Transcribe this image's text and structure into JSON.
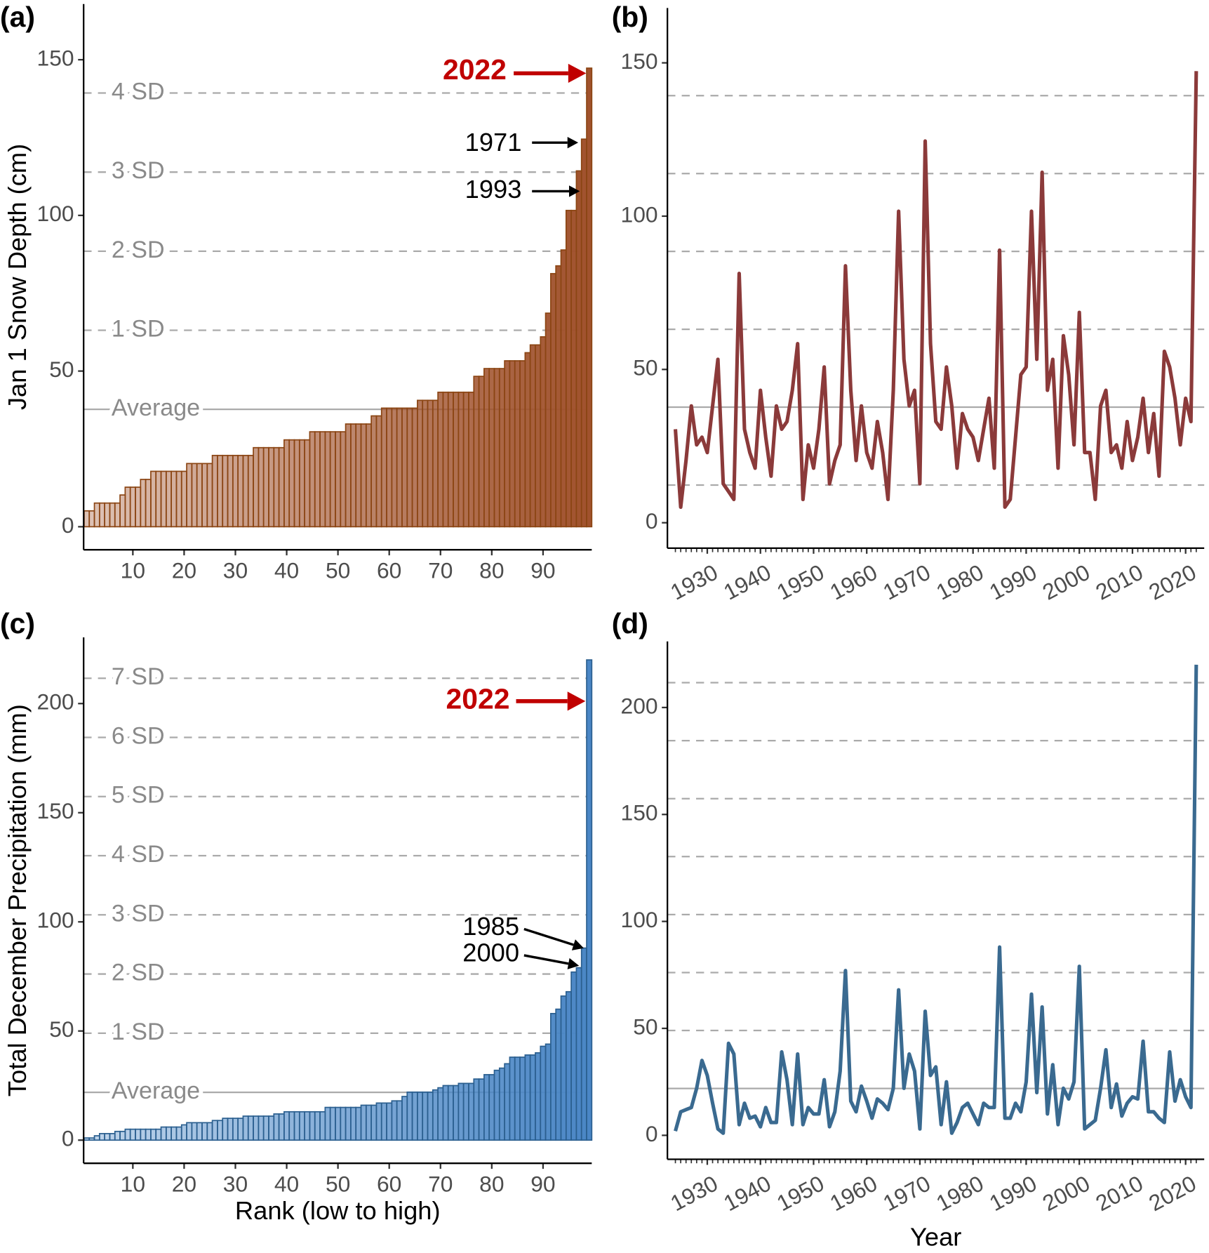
{
  "chart_data": [
    {
      "type": "bar",
      "panel_label": "(a)",
      "ylabel": "Jan 1 Snow Depth (cm)",
      "color": "#a0522d",
      "edge_color": "#8b4513",
      "x": [
        1,
        2,
        3,
        4,
        5,
        6,
        7,
        8,
        9,
        10,
        11,
        12,
        13,
        14,
        15,
        16,
        17,
        18,
        19,
        20,
        21,
        22,
        23,
        24,
        25,
        26,
        27,
        28,
        29,
        30,
        31,
        32,
        33,
        34,
        35,
        36,
        37,
        38,
        39,
        40,
        41,
        42,
        43,
        44,
        45,
        46,
        47,
        48,
        49,
        50,
        51,
        52,
        53,
        54,
        55,
        56,
        57,
        58,
        59,
        60,
        61,
        62,
        63,
        64,
        65,
        66,
        67,
        68,
        69,
        70,
        71,
        72,
        73,
        74,
        75,
        76,
        77,
        78,
        79,
        80,
        81,
        82,
        83,
        84,
        85,
        86,
        87,
        88,
        89,
        90,
        91,
        92,
        93,
        94,
        95,
        96,
        97,
        98,
        99
      ],
      "values": [
        5.1,
        5.1,
        7.6,
        7.6,
        7.6,
        7.6,
        7.6,
        10.2,
        12.7,
        12.7,
        12.7,
        15.2,
        15.2,
        17.8,
        17.8,
        17.8,
        17.8,
        17.8,
        17.8,
        17.8,
        20.3,
        20.3,
        20.3,
        20.3,
        20.3,
        22.9,
        22.9,
        22.9,
        22.9,
        22.9,
        22.9,
        22.9,
        22.9,
        25.4,
        25.4,
        25.4,
        25.4,
        25.4,
        25.4,
        27.9,
        27.9,
        27.9,
        27.9,
        27.9,
        30.5,
        30.5,
        30.5,
        30.5,
        30.5,
        30.5,
        30.5,
        33,
        33,
        33,
        33,
        33,
        35.6,
        35.6,
        38.1,
        38.1,
        38.1,
        38.1,
        38.1,
        38.1,
        38.1,
        40.6,
        40.6,
        40.6,
        40.6,
        43.2,
        43.2,
        43.2,
        43.2,
        43.2,
        43.2,
        43.2,
        48.3,
        48.3,
        50.8,
        50.8,
        50.8,
        50.8,
        53.3,
        53.3,
        53.3,
        53.3,
        55.9,
        58.4,
        58.4,
        61,
        68.6,
        81.3,
        83.8,
        88.9,
        101.6,
        101.6,
        114.3,
        124.5,
        147.3
      ],
      "xlim": [
        0.4,
        99.5
      ],
      "xticks": [
        10,
        20,
        30,
        40,
        50,
        60,
        70,
        80,
        90
      ],
      "ylim": [
        -7.4,
        167.9
      ],
      "yticks": [
        0,
        50,
        100,
        150
      ],
      "reference_lines": [
        {
          "value": 37.7,
          "label": "Average",
          "style": "solid"
        },
        {
          "value": 63.1,
          "label": "1 SD",
          "style": "dashed"
        },
        {
          "value": 88.5,
          "label": "2 SD",
          "style": "dashed"
        },
        {
          "value": 113.9,
          "label": "3 SD",
          "style": "dashed"
        },
        {
          "value": 139.3,
          "label": "4 SD",
          "style": "dashed"
        }
      ],
      "annotations": [
        {
          "text": "2022",
          "color": "#c00000",
          "bold": true
        },
        {
          "text": "1971",
          "color": "#000000",
          "bold": false
        },
        {
          "text": "1993",
          "color": "#000000",
          "bold": false
        }
      ]
    },
    {
      "type": "line",
      "panel_label": "(b)",
      "color": "#8b3a3a",
      "x": [
        1924,
        1925,
        1926,
        1927,
        1928,
        1929,
        1930,
        1931,
        1932,
        1933,
        1934,
        1935,
        1936,
        1937,
        1938,
        1939,
        1940,
        1941,
        1942,
        1943,
        1944,
        1945,
        1946,
        1947,
        1948,
        1949,
        1950,
        1951,
        1952,
        1953,
        1954,
        1955,
        1956,
        1957,
        1958,
        1959,
        1960,
        1961,
        1962,
        1963,
        1964,
        1965,
        1966,
        1967,
        1968,
        1969,
        1970,
        1971,
        1972,
        1973,
        1974,
        1975,
        1976,
        1977,
        1978,
        1979,
        1980,
        1981,
        1982,
        1983,
        1984,
        1985,
        1986,
        1987,
        1988,
        1989,
        1990,
        1991,
        1992,
        1993,
        1994,
        1995,
        1996,
        1997,
        1998,
        1999,
        2000,
        2001,
        2002,
        2003,
        2004,
        2005,
        2006,
        2007,
        2008,
        2009,
        2010,
        2011,
        2012,
        2013,
        2014,
        2015,
        2016,
        2017,
        2018,
        2019,
        2020,
        2021,
        2022
      ],
      "values": [
        30.5,
        5.1,
        20.3,
        38.1,
        25.4,
        27.9,
        22.9,
        38.1,
        53.3,
        12.7,
        10.2,
        7.6,
        81.3,
        30.5,
        22.9,
        17.8,
        43.2,
        27.9,
        15.2,
        38.1,
        30.5,
        33,
        43.2,
        58.4,
        7.6,
        25.4,
        17.8,
        30.5,
        50.8,
        12.7,
        20.3,
        25.4,
        83.8,
        43.2,
        20.3,
        38.1,
        22.9,
        17.8,
        33,
        22.9,
        7.6,
        43.2,
        101.6,
        53.3,
        38.1,
        43.2,
        12.7,
        124.5,
        58.4,
        33,
        30.5,
        50.8,
        38.1,
        17.8,
        35.6,
        30.5,
        27.9,
        20.3,
        30.5,
        40.6,
        17.8,
        88.9,
        5.1,
        7.6,
        27.9,
        48.3,
        50.8,
        101.6,
        53.3,
        114.3,
        43.2,
        53.3,
        17.8,
        61,
        48.3,
        25.4,
        68.6,
        22.9,
        22.9,
        7.6,
        38.1,
        43.2,
        22.9,
        25.4,
        17.8,
        33,
        20.3,
        27.9,
        40.6,
        22.9,
        35.6,
        15.2,
        55.9,
        50.8,
        40.6,
        25.4,
        40.6,
        33,
        147.3
      ],
      "xlim": [
        1922.5,
        2023.5
      ],
      "xticks": [
        1930,
        1940,
        1950,
        1960,
        1970,
        1980,
        1990,
        2000,
        2010,
        2020
      ],
      "minor_xticks": true,
      "ylim": [
        -8.3,
        167.9
      ],
      "yticks": [
        0,
        50,
        100,
        150
      ],
      "reference_lines": [
        {
          "value": 12.3,
          "style": "dashed"
        },
        {
          "value": 37.7,
          "style": "solid"
        },
        {
          "value": 63.1,
          "style": "dashed"
        },
        {
          "value": 88.5,
          "style": "dashed"
        },
        {
          "value": 113.9,
          "style": "dashed"
        },
        {
          "value": 139.3,
          "style": "dashed"
        }
      ]
    },
    {
      "type": "bar",
      "panel_label": "(c)",
      "ylabel": "Total December Precipitation (mm)",
      "xlabel": "Rank (low to high)",
      "color": "#4a86c5",
      "edge_color": "#2b5f8f",
      "x": [
        1,
        2,
        3,
        4,
        5,
        6,
        7,
        8,
        9,
        10,
        11,
        12,
        13,
        14,
        15,
        16,
        17,
        18,
        19,
        20,
        21,
        22,
        23,
        24,
        25,
        26,
        27,
        28,
        29,
        30,
        31,
        32,
        33,
        34,
        35,
        36,
        37,
        38,
        39,
        40,
        41,
        42,
        43,
        44,
        45,
        46,
        47,
        48,
        49,
        50,
        51,
        52,
        53,
        54,
        55,
        56,
        57,
        58,
        59,
        60,
        61,
        62,
        63,
        64,
        65,
        66,
        67,
        68,
        69,
        70,
        71,
        72,
        73,
        74,
        75,
        76,
        77,
        78,
        79,
        80,
        81,
        82,
        83,
        84,
        85,
        86,
        87,
        88,
        89,
        90,
        91,
        92,
        93,
        94,
        95,
        96,
        97,
        98,
        99
      ],
      "values": [
        1,
        1,
        2,
        3,
        3,
        3,
        4,
        4,
        5,
        5,
        5,
        5,
        5,
        5,
        5,
        6,
        6,
        6,
        6,
        7,
        8,
        8,
        8,
        8,
        8,
        9,
        9,
        10,
        10,
        10,
        10,
        11,
        11,
        11,
        11,
        11,
        11,
        12,
        12,
        13,
        13,
        13,
        13,
        13,
        13,
        13,
        13,
        15,
        15,
        15,
        15,
        15,
        15,
        15,
        16,
        16,
        16,
        17,
        17,
        17,
        18,
        18,
        20,
        22,
        22,
        22,
        22,
        22,
        23,
        24,
        25,
        25,
        25,
        26,
        26,
        26,
        28,
        28,
        30,
        30,
        32,
        33,
        35,
        38,
        38,
        38,
        39,
        39,
        40,
        43,
        44,
        58,
        60,
        66,
        68,
        77,
        79,
        88,
        220
      ],
      "xlim": [
        0.4,
        99.5
      ],
      "xticks": [
        10,
        20,
        30,
        40,
        50,
        60,
        70,
        80,
        90
      ],
      "ylim": [
        -10.6,
        230.3
      ],
      "yticks": [
        0,
        50,
        100,
        150,
        200
      ],
      "reference_lines": [
        {
          "value": 21.9,
          "label": "Average",
          "style": "solid"
        },
        {
          "value": 49,
          "label": "1 SD",
          "style": "dashed"
        },
        {
          "value": 76.1,
          "label": "2 SD",
          "style": "dashed"
        },
        {
          "value": 103.2,
          "label": "3 SD",
          "style": "dashed"
        },
        {
          "value": 130.3,
          "label": "4 SD",
          "style": "dashed"
        },
        {
          "value": 157.4,
          "label": "5 SD",
          "style": "dashed"
        },
        {
          "value": 184.5,
          "label": "6 SD",
          "style": "dashed"
        },
        {
          "value": 211.6,
          "label": "7 SD",
          "style": "dashed"
        }
      ],
      "annotations": [
        {
          "text": "2022",
          "color": "#c00000",
          "bold": true
        },
        {
          "text": "1985",
          "color": "#000000",
          "bold": false
        },
        {
          "text": "2000",
          "color": "#000000",
          "bold": false
        }
      ]
    },
    {
      "type": "line",
      "panel_label": "(d)",
      "xlabel": "Year",
      "color": "#3a6a90",
      "x": [
        1924,
        1925,
        1926,
        1927,
        1928,
        1929,
        1930,
        1931,
        1932,
        1933,
        1934,
        1935,
        1936,
        1937,
        1938,
        1939,
        1940,
        1941,
        1942,
        1943,
        1944,
        1945,
        1946,
        1947,
        1948,
        1949,
        1950,
        1951,
        1952,
        1953,
        1954,
        1955,
        1956,
        1957,
        1958,
        1959,
        1960,
        1961,
        1962,
        1963,
        1964,
        1965,
        1966,
        1967,
        1968,
        1969,
        1970,
        1971,
        1972,
        1973,
        1974,
        1975,
        1976,
        1977,
        1978,
        1979,
        1980,
        1981,
        1982,
        1983,
        1984,
        1985,
        1986,
        1987,
        1988,
        1989,
        1990,
        1991,
        1992,
        1993,
        1994,
        1995,
        1996,
        1997,
        1998,
        1999,
        2000,
        2001,
        2002,
        2003,
        2004,
        2005,
        2006,
        2007,
        2008,
        2009,
        2010,
        2011,
        2012,
        2013,
        2014,
        2015,
        2016,
        2017,
        2018,
        2019,
        2020,
        2021,
        2022
      ],
      "values": [
        2,
        11,
        12,
        13,
        22,
        35,
        28,
        15,
        3,
        1,
        43,
        38,
        5,
        15,
        8,
        9,
        4,
        13,
        6,
        6,
        39,
        26,
        5,
        38,
        5,
        13,
        10,
        10,
        26,
        4,
        11,
        30,
        77,
        16,
        11,
        23,
        16,
        8,
        17,
        15,
        12,
        22,
        68,
        22,
        38,
        30,
        3,
        58,
        28,
        32,
        5,
        25,
        1,
        6,
        13,
        15,
        10,
        5,
        15,
        13,
        13,
        88,
        8,
        8,
        15,
        11,
        25,
        66,
        20,
        60,
        10,
        33,
        5,
        22,
        17,
        25,
        79,
        3,
        5,
        7,
        22,
        40,
        13,
        24,
        9,
        15,
        18,
        17,
        44,
        11,
        11,
        8,
        6,
        39,
        16,
        26,
        18,
        13,
        220
      ],
      "xlim": [
        1922.5,
        2023.5
      ],
      "xticks": [
        1930,
        1940,
        1950,
        1960,
        1970,
        1980,
        1990,
        2000,
        2010,
        2020
      ],
      "minor_xticks": true,
      "ylim": [
        -11.2,
        230.9
      ],
      "yticks": [
        0,
        50,
        100,
        150,
        200
      ],
      "reference_lines": [
        {
          "value": 21.9,
          "style": "solid"
        },
        {
          "value": 49,
          "style": "dashed"
        },
        {
          "value": 76.1,
          "style": "dashed"
        },
        {
          "value": 103.2,
          "style": "dashed"
        },
        {
          "value": 130.3,
          "style": "dashed"
        },
        {
          "value": 157.4,
          "style": "dashed"
        },
        {
          "value": 184.5,
          "style": "dashed"
        },
        {
          "value": 211.6,
          "style": "dashed"
        }
      ]
    }
  ]
}
